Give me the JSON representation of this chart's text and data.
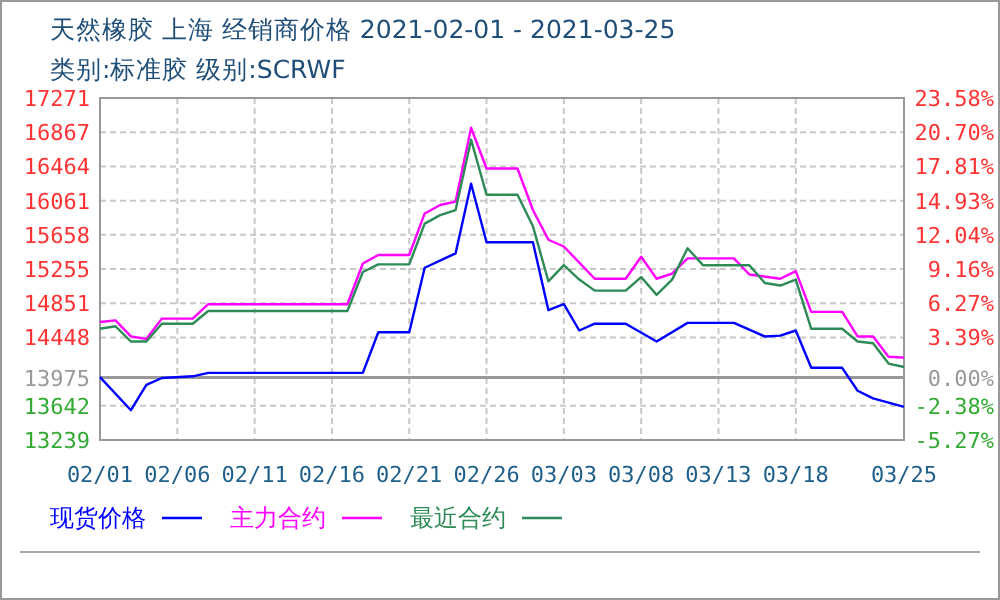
{
  "chart_data": {
    "type": "line",
    "title": "天然橡胶 上海 经销商价格 2021-02-01 - 2021-03-25",
    "subtitle": "类别:标准胶 级别:SCRWF",
    "xlim": [
      "2021-02-01",
      "2021-03-25"
    ],
    "xticks": [
      {
        "value": "2021-02-01",
        "label": "02/01"
      },
      {
        "value": "2021-02-06",
        "label": "02/06"
      },
      {
        "value": "2021-02-11",
        "label": "02/11"
      },
      {
        "value": "2021-02-16",
        "label": "02/16"
      },
      {
        "value": "2021-02-21",
        "label": "02/21"
      },
      {
        "value": "2021-02-26",
        "label": "02/26"
      },
      {
        "value": "2021-03-03",
        "label": "03/03"
      },
      {
        "value": "2021-03-08",
        "label": "03/08"
      },
      {
        "value": "2021-03-13",
        "label": "03/13"
      },
      {
        "value": "2021-03-18",
        "label": "03/18"
      },
      {
        "value": "2021-03-25",
        "label": "03/25"
      }
    ],
    "ylim": [
      13239,
      17271
    ],
    "yticks": [
      13239,
      13642,
      13975,
      14448,
      14851,
      15255,
      15658,
      16061,
      16464,
      16867,
      17271
    ],
    "y2lim": [
      -5.27,
      23.58
    ],
    "y2ticks": [
      {
        "value": -5.27,
        "label": "-5.27%"
      },
      {
        "value": -2.38,
        "label": "-2.38%"
      },
      {
        "value": 0,
        "label": "0.00%"
      },
      {
        "value": 3.39,
        "label": "3.39%"
      },
      {
        "value": 6.27,
        "label": "6.27%"
      },
      {
        "value": 9.16,
        "label": "9.16%"
      },
      {
        "value": 12.04,
        "label": "12.04%"
      },
      {
        "value": 14.93,
        "label": "14.93%"
      },
      {
        "value": 17.81,
        "label": "17.81%"
      },
      {
        "value": 20.7,
        "label": "20.70%"
      },
      {
        "value": 23.58,
        "label": "23.58%"
      }
    ],
    "ref_lines": [
      {
        "axis": "y",
        "value": 13975,
        "color": "#999999"
      }
    ],
    "grid": true,
    "legend": "bottom",
    "line_style": "solid",
    "series": [
      {
        "name": "现货价格",
        "color": "#0000ff",
        "x": [
          "2021-02-01",
          "2021-02-03",
          "2021-02-04",
          "2021-02-05",
          "2021-02-07",
          "2021-02-08",
          "2021-02-18",
          "2021-02-19",
          "2021-02-21",
          "2021-02-22",
          "2021-02-24",
          "2021-02-25",
          "2021-02-26",
          "2021-03-01",
          "2021-03-02",
          "2021-03-03",
          "2021-03-04",
          "2021-03-05",
          "2021-03-07",
          "2021-03-09",
          "2021-03-11",
          "2021-03-14",
          "2021-03-16",
          "2021-03-17",
          "2021-03-18",
          "2021-03-19",
          "2021-03-21",
          "2021-03-22",
          "2021-03-23",
          "2021-03-25"
        ],
        "values": [
          13980,
          13590,
          13890,
          13970,
          13990,
          14030,
          14030,
          14510,
          14510,
          15270,
          15440,
          16260,
          15570,
          15570,
          14770,
          14840,
          14530,
          14610,
          14610,
          14400,
          14620,
          14620,
          14460,
          14470,
          14530,
          14090,
          14090,
          13820,
          13730,
          13630
        ]
      },
      {
        "name": "主力合约",
        "color": "#ff00ff",
        "x": [
          "2021-02-01",
          "2021-02-02",
          "2021-02-03",
          "2021-02-04",
          "2021-02-05",
          "2021-02-07",
          "2021-02-08",
          "2021-02-17",
          "2021-02-18",
          "2021-02-19",
          "2021-02-21",
          "2021-02-22",
          "2021-02-23",
          "2021-02-24",
          "2021-02-25",
          "2021-02-26",
          "2021-02-28",
          "2021-03-01",
          "2021-03-02",
          "2021-03-03",
          "2021-03-05",
          "2021-03-07",
          "2021-03-08",
          "2021-03-09",
          "2021-03-10",
          "2021-03-11",
          "2021-03-14",
          "2021-03-15",
          "2021-03-17",
          "2021-03-18",
          "2021-03-19",
          "2021-03-21",
          "2021-03-22",
          "2021-03-23",
          "2021-03-24",
          "2021-03-25"
        ],
        "values": [
          14630,
          14650,
          14460,
          14430,
          14670,
          14670,
          14840,
          14840,
          15320,
          15420,
          15420,
          15910,
          16010,
          16050,
          16920,
          16440,
          16440,
          15950,
          15600,
          15520,
          15140,
          15140,
          15400,
          15140,
          15200,
          15380,
          15380,
          15190,
          15140,
          15230,
          14750,
          14750,
          14460,
          14460,
          14220,
          14210
        ]
      },
      {
        "name": "最近合约",
        "color": "#2e8b57",
        "x": [
          "2021-02-01",
          "2021-02-02",
          "2021-02-03",
          "2021-02-04",
          "2021-02-05",
          "2021-02-07",
          "2021-02-08",
          "2021-02-17",
          "2021-02-18",
          "2021-02-19",
          "2021-02-21",
          "2021-02-22",
          "2021-02-23",
          "2021-02-24",
          "2021-02-25",
          "2021-02-26",
          "2021-02-28",
          "2021-03-01",
          "2021-03-02",
          "2021-03-03",
          "2021-03-04",
          "2021-03-05",
          "2021-03-07",
          "2021-03-08",
          "2021-03-09",
          "2021-03-10",
          "2021-03-11",
          "2021-03-12",
          "2021-03-15",
          "2021-03-16",
          "2021-03-17",
          "2021-03-18",
          "2021-03-19",
          "2021-03-21",
          "2021-03-22",
          "2021-03-23",
          "2021-03-24",
          "2021-03-25"
        ],
        "values": [
          14550,
          14580,
          14400,
          14400,
          14610,
          14610,
          14760,
          14760,
          15220,
          15310,
          15310,
          15790,
          15890,
          15950,
          16780,
          16130,
          16130,
          15760,
          15110,
          15300,
          15130,
          15000,
          15000,
          15160,
          14950,
          15130,
          15500,
          15300,
          15300,
          15090,
          15060,
          15130,
          14550,
          14550,
          14400,
          14380,
          14140,
          14100
        ]
      }
    ]
  }
}
